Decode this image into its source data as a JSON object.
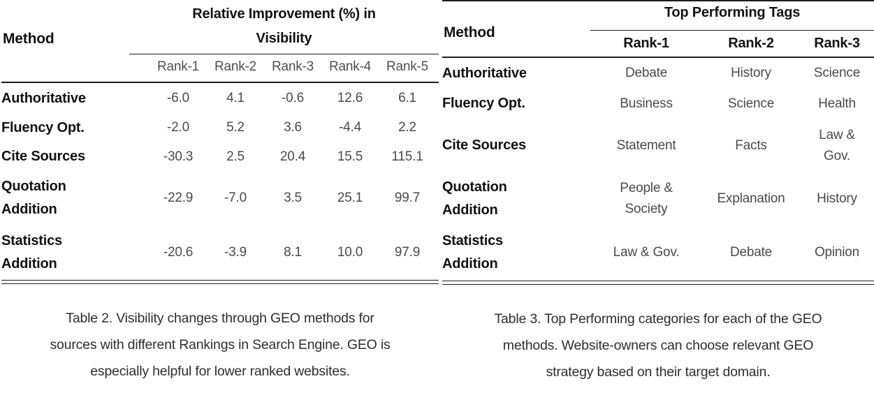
{
  "colors": {
    "background": "#ffffff",
    "rule": "#1c1c1c",
    "heading_text": "#121212",
    "body_text": "#4a4a4a",
    "caption_text": "#2e2e2e"
  },
  "table2": {
    "method_header": "Method",
    "group_header_lines": [
      "Relative Improvement (%) in",
      "Visibility"
    ],
    "group_header": "Relative Improvement (%) in Visibility",
    "columns": [
      "Rank-1",
      "Rank-2",
      "Rank-3",
      "Rank-4",
      "Rank-5"
    ],
    "rows": [
      {
        "method_lines": [
          "Authoritative"
        ],
        "values": [
          "-6.0",
          "4.1",
          "-0.6",
          "12.6",
          "6.1"
        ]
      },
      {
        "method_lines": [
          "Fluency Opt."
        ],
        "values": [
          "-2.0",
          "5.2",
          "3.6",
          "-4.4",
          "2.2"
        ]
      },
      {
        "method_lines": [
          "Cite Sources"
        ],
        "values": [
          "-30.3",
          "2.5",
          "20.4",
          "15.5",
          "115.1"
        ]
      },
      {
        "method_lines": [
          "Quotation",
          "Addition"
        ],
        "values": [
          "-22.9",
          "-7.0",
          "3.5",
          "25.1",
          "99.7"
        ]
      },
      {
        "method_lines": [
          "Statistics",
          "Addition"
        ],
        "values": [
          "-20.6",
          "-3.9",
          "8.1",
          "10.0",
          "97.9"
        ]
      }
    ],
    "caption_lines": [
      "Table 2. Visibility changes through GEO methods for",
      "sources with different Rankings in Search Engine. GEO is",
      "especially helpful for lower ranked websites."
    ]
  },
  "table3": {
    "method_header": "Method",
    "group_header": "Top Performing Tags",
    "columns": [
      "Rank-1",
      "Rank-2",
      "Rank-3"
    ],
    "rows": [
      {
        "method_lines": [
          "Authoritative"
        ],
        "values": [
          [
            "Debate"
          ],
          [
            "History"
          ],
          [
            "Science"
          ]
        ]
      },
      {
        "method_lines": [
          "Fluency Opt."
        ],
        "values": [
          [
            "Business"
          ],
          [
            "Science"
          ],
          [
            "Health"
          ]
        ]
      },
      {
        "method_lines": [
          "Cite Sources"
        ],
        "values": [
          [
            "Statement"
          ],
          [
            "Facts"
          ],
          [
            "Law &",
            "Gov."
          ]
        ]
      },
      {
        "method_lines": [
          "Quotation",
          "Addition"
        ],
        "values": [
          [
            "People &",
            "Society"
          ],
          [
            "Explanation"
          ],
          [
            "History"
          ]
        ]
      },
      {
        "method_lines": [
          "Statistics",
          "Addition"
        ],
        "values": [
          [
            "Law & Gov."
          ],
          [
            "Debate"
          ],
          [
            "Opinion"
          ]
        ]
      }
    ],
    "caption_lines": [
      "Table 3. Top Performing categories for each of the GEO",
      "methods. Website-owners can choose relevant GEO",
      "strategy based on their target domain."
    ]
  }
}
